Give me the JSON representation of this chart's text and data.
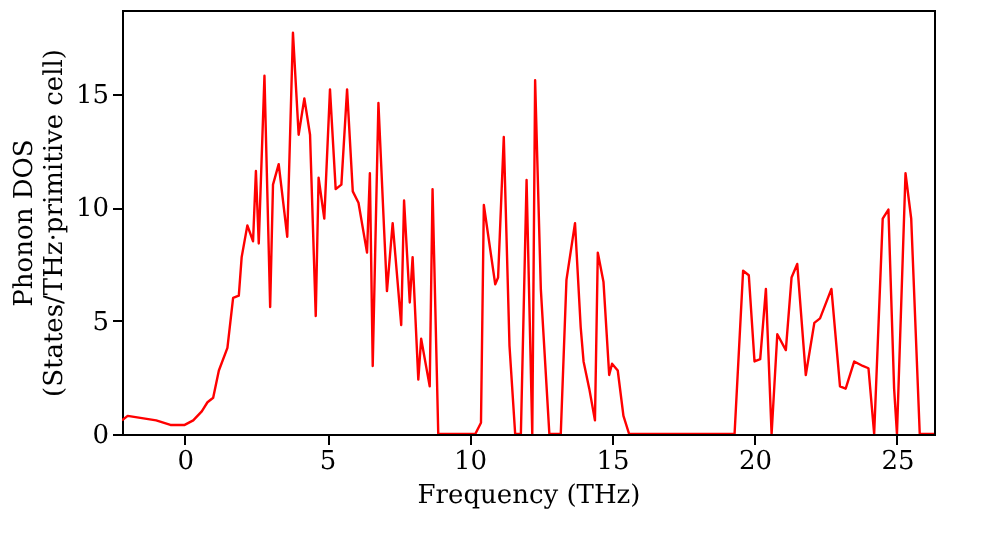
{
  "chart_data": {
    "type": "line",
    "xlabel": "Frequency (THz)",
    "ylabel": "Phonon DOS\n(States/THz·primitive cell)",
    "xlim": [
      -2.2,
      26.3
    ],
    "ylim": [
      0,
      18.7
    ],
    "xticks": [
      0,
      5,
      10,
      15,
      20,
      25
    ],
    "yticks": [
      0,
      5,
      10,
      15
    ],
    "grid": false,
    "series": [
      {
        "color": "#ff0000",
        "x": [
          -2.2,
          -2.0,
          -1.5,
          -1.0,
          -0.5,
          0.0,
          0.3,
          0.6,
          0.8,
          1.0,
          1.2,
          1.5,
          1.7,
          1.9,
          2.0,
          2.2,
          2.4,
          2.5,
          2.6,
          2.8,
          3.0,
          3.1,
          3.3,
          3.6,
          3.8,
          4.0,
          4.2,
          4.4,
          4.6,
          4.7,
          4.9,
          5.1,
          5.3,
          5.5,
          5.7,
          5.9,
          6.1,
          6.4,
          6.5,
          6.6,
          6.8,
          7.0,
          7.1,
          7.3,
          7.6,
          7.7,
          7.9,
          8.0,
          8.2,
          8.3,
          8.6,
          8.7,
          8.9,
          10.2,
          10.4,
          10.5,
          10.9,
          11.0,
          11.2,
          11.4,
          11.6,
          11.8,
          12.0,
          12.2,
          12.3,
          12.5,
          12.8,
          13.2,
          13.4,
          13.7,
          13.9,
          14.0,
          14.2,
          14.4,
          14.5,
          14.7,
          14.9,
          15.0,
          15.2,
          15.4,
          15.6,
          19.3,
          19.6,
          19.8,
          20.0,
          20.2,
          20.4,
          20.6,
          20.8,
          21.1,
          21.3,
          21.5,
          21.8,
          22.1,
          22.3,
          22.7,
          23.0,
          23.2,
          23.5,
          23.8,
          24.0,
          24.2,
          24.5,
          24.7,
          24.9,
          25.0,
          25.3,
          25.5,
          25.8,
          26.3
        ],
        "values": [
          0.6,
          0.8,
          0.7,
          0.6,
          0.4,
          0.4,
          0.6,
          1.0,
          1.4,
          1.6,
          2.8,
          3.8,
          6.0,
          6.1,
          7.8,
          9.2,
          8.5,
          11.6,
          8.4,
          15.8,
          5.6,
          11.0,
          11.9,
          8.7,
          17.7,
          13.2,
          14.8,
          13.2,
          5.2,
          11.3,
          9.5,
          15.2,
          10.8,
          11.0,
          15.2,
          10.7,
          10.2,
          8.0,
          11.5,
          3.0,
          14.6,
          9.0,
          6.3,
          9.3,
          4.8,
          10.3,
          5.8,
          7.8,
          2.4,
          4.2,
          2.1,
          10.8,
          0,
          0,
          0.5,
          10.1,
          6.6,
          6.9,
          13.1,
          3.9,
          0,
          0,
          11.2,
          0,
          15.6,
          6.4,
          0,
          0,
          6.8,
          9.3,
          4.7,
          3.2,
          2.0,
          0.6,
          8.0,
          6.7,
          2.6,
          3.1,
          2.8,
          0.8,
          0,
          0,
          7.2,
          7.0,
          3.2,
          3.3,
          6.4,
          0,
          4.4,
          3.7,
          6.9,
          7.5,
          2.6,
          4.9,
          5.1,
          6.4,
          2.1,
          2.0,
          3.2,
          3.0,
          2.9,
          0,
          9.5,
          9.9,
          2.0,
          0,
          11.5,
          9.5,
          0,
          0
        ]
      }
    ]
  }
}
